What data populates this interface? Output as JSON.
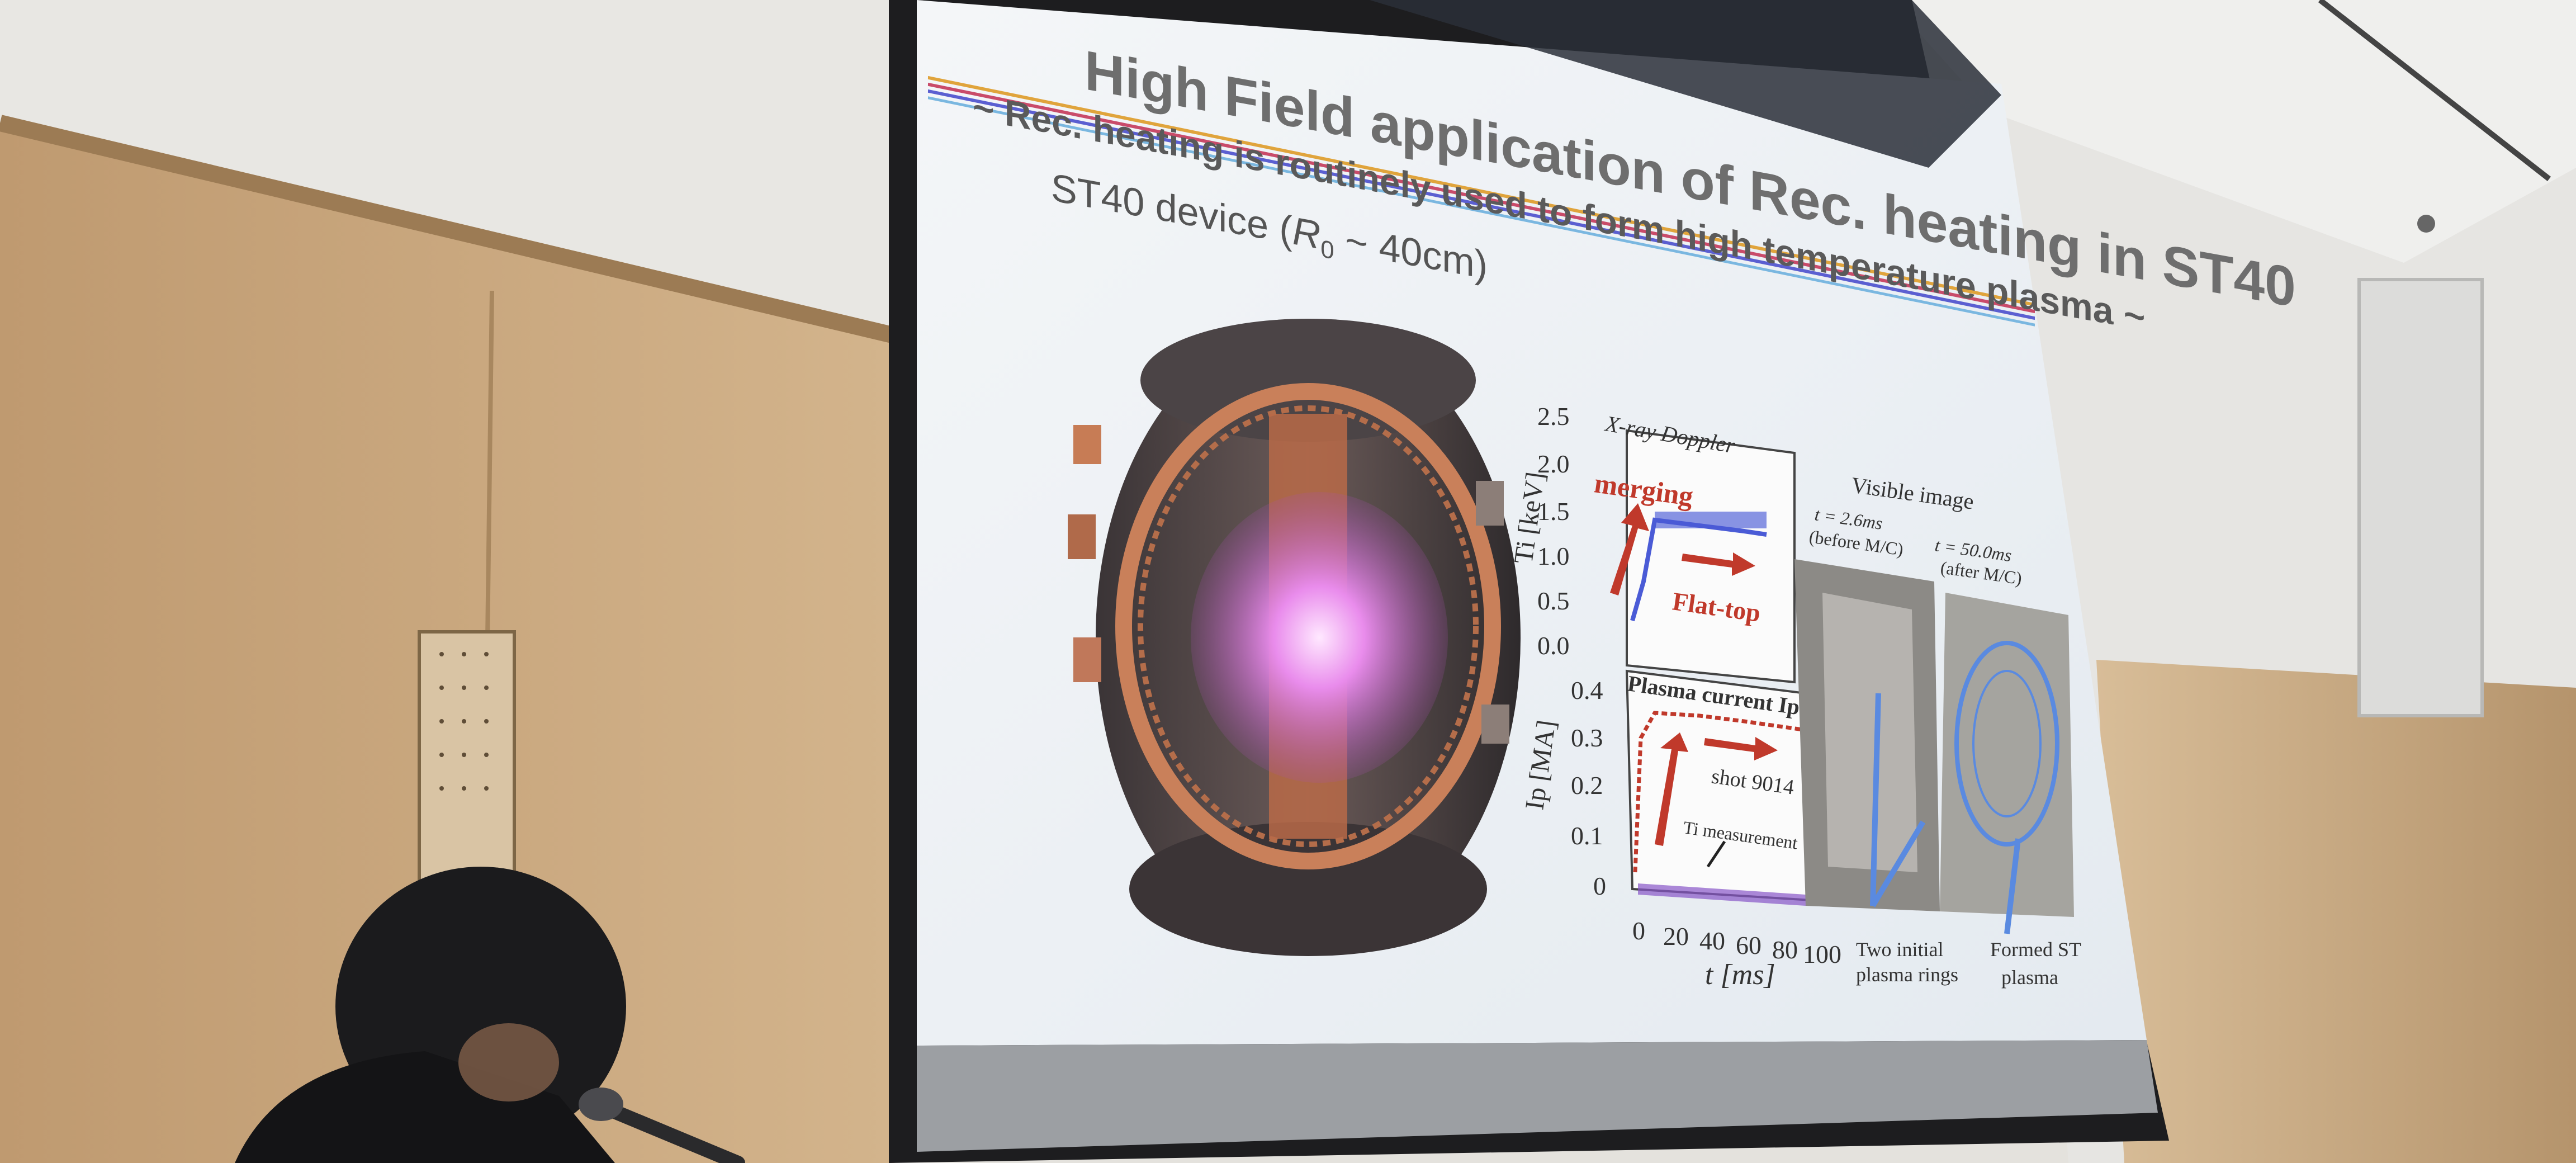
{
  "slide": {
    "title": "High Field application of Rec. heating in ST40",
    "subtitle": "~ Rec. heating is routinely used to form high temperature plasma ~",
    "device_label": "ST40 device (",
    "device_r0": "R",
    "device_r0_sub": "0",
    "device_r0_rest": " ~ 40cm)",
    "xray": {
      "heading": "X-ray Doppler",
      "ylabel": "Ti [keV]",
      "yticks": [
        "2.5",
        "2.0",
        "1.5",
        "1.0",
        "0.5",
        "0.0"
      ],
      "merging": "merging",
      "flattop": "Flat-top"
    },
    "current": {
      "heading": "Plasma current Ip",
      "ylabel": "Ip [MA]",
      "yticks": [
        "0.4",
        "0.3",
        "0.2",
        "0.1",
        "0"
      ],
      "shot": "shot 9014",
      "ti_meas": "Ti measurement",
      "xticks": [
        "0",
        "20",
        "40",
        "60",
        "80",
        "100"
      ],
      "xlabel": "t [ms]"
    },
    "visible": {
      "heading": "Visible image",
      "t1": "t = 2.6ms",
      "t1_note": "(before M/C)",
      "t2": "t = 50.0ms",
      "t2_note": "(after M/C)",
      "cap1_a": "Two initial",
      "cap1_b": "plasma rings",
      "cap2_a": "Formed ST",
      "cap2_b": "plasma"
    }
  },
  "colors": {
    "screen_bg": "#eef2f6",
    "title_gray": "#6e6e6e",
    "merge_red": "#c0392b",
    "data_blue": "#4a5bd6",
    "plasma_pink": "#e07ee6",
    "wall_wood": "#c9a67c"
  }
}
